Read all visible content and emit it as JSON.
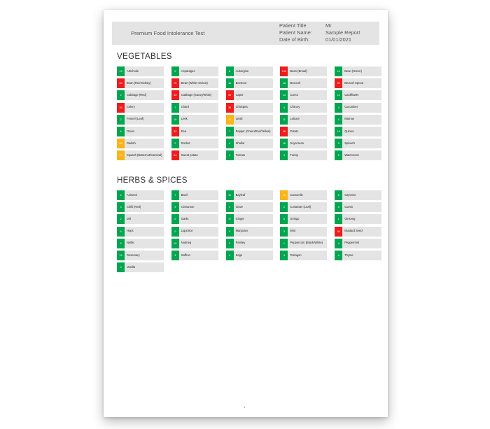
{
  "header": {
    "test_title": "Premium Food Intolerance Test",
    "patient_rows": [
      {
        "label": "Patient Title",
        "value": "Mr"
      },
      {
        "label": "Patient Name:",
        "value": "Sample Report"
      },
      {
        "label": "Date of Birth:",
        "value": "01/01/2021"
      }
    ]
  },
  "colors": {
    "normal": "#00a550",
    "borderline": "#fbb416",
    "elevated": "#ee1c1c"
  },
  "sections": [
    {
      "title": "VEGETABLES",
      "items": [
        {
          "score": "13",
          "name": "Artichoke",
          "level": "green"
        },
        {
          "score": "0",
          "name": "Asparagus",
          "level": "green"
        },
        {
          "score": "8",
          "name": "Aubergine",
          "level": "green"
        },
        {
          "score": "106",
          "name": "Bean (Broad)",
          "level": "red"
        },
        {
          "score": "19",
          "name": "Bean (Green)",
          "level": "green"
        },
        {
          "score": "40",
          "name": "Bean (Red Kidney)",
          "level": "red"
        },
        {
          "score": "70",
          "name": "Bean (White Haricot)",
          "level": "red"
        },
        {
          "score": "16",
          "name": "Beetroot",
          "level": "green"
        },
        {
          "score": "18",
          "name": "Broccoli",
          "level": "green"
        },
        {
          "score": "39",
          "name": "Brussel Sprout",
          "level": "red"
        },
        {
          "score": "2",
          "name": "Cabbage (Red)",
          "level": "green"
        },
        {
          "score": "33",
          "name": "Cabbage (Savoy/White)",
          "level": "red"
        },
        {
          "score": "30",
          "name": "Caper",
          "level": "red"
        },
        {
          "score": "13",
          "name": "Carrot",
          "level": "green"
        },
        {
          "score": "14",
          "name": "Cauliflower",
          "level": "green"
        },
        {
          "score": "33",
          "name": "Celery",
          "level": "red"
        },
        {
          "score": "7",
          "name": "Chard",
          "level": "green"
        },
        {
          "score": "33",
          "name": "Chickpea",
          "level": "red"
        },
        {
          "score": "4",
          "name": "Chicory",
          "level": "green"
        },
        {
          "score": "4",
          "name": "Cucumber",
          "level": "green"
        },
        {
          "score": "2",
          "name": "Fennel (Leaf)",
          "level": "green"
        },
        {
          "score": "16",
          "name": "Leek",
          "level": "green"
        },
        {
          "score": "17",
          "name": "Lentil",
          "level": "amber"
        },
        {
          "score": "11",
          "name": "Lettuce",
          "level": "green"
        },
        {
          "score": "4",
          "name": "Marrow",
          "level": "green"
        },
        {
          "score": "6",
          "name": "Onion",
          "level": "green"
        },
        {
          "score": "32",
          "name": "Pea",
          "level": "red"
        },
        {
          "score": "7",
          "name": "Pepper (Green/Red/Yellow)",
          "level": "green"
        },
        {
          "score": "38",
          "name": "Potato",
          "level": "red"
        },
        {
          "score": "19",
          "name": "Quinoa",
          "level": "green"
        },
        {
          "score": "10",
          "name": "Radish",
          "level": "amber"
        },
        {
          "score": "2",
          "name": "Rocket",
          "level": "green"
        },
        {
          "score": "4",
          "name": "Shallot",
          "level": "green"
        },
        {
          "score": "16",
          "name": "Soya bean",
          "level": "green"
        },
        {
          "score": "3",
          "name": "Spinach",
          "level": "green"
        },
        {
          "score": "15",
          "name": "Squash (Butternut/Carnival)",
          "level": "amber"
        },
        {
          "score": "24",
          "name": "Sweet potato",
          "level": "red"
        },
        {
          "score": "1",
          "name": "Tomato",
          "level": "green"
        },
        {
          "score": "3",
          "name": "Turnip",
          "level": "green"
        },
        {
          "score": "5",
          "name": "Watercress",
          "level": "green"
        }
      ]
    },
    {
      "title": "HERBS & SPICES",
      "items": [
        {
          "score": "4",
          "name": "Aniseed",
          "level": "green"
        },
        {
          "score": "7",
          "name": "Basil",
          "level": "green"
        },
        {
          "score": "19",
          "name": "Bayleaf",
          "level": "green"
        },
        {
          "score": "26",
          "name": "Camomile",
          "level": "amber"
        },
        {
          "score": "8",
          "name": "Cayenne",
          "level": "green"
        },
        {
          "score": "3",
          "name": "Chilli (Red)",
          "level": "green"
        },
        {
          "score": "9",
          "name": "Cinnamon",
          "level": "green"
        },
        {
          "score": "0",
          "name": "Clove",
          "level": "green"
        },
        {
          "score": "2",
          "name": "Coriander (Leaf)",
          "level": "green"
        },
        {
          "score": "5",
          "name": "Cumin",
          "level": "green"
        },
        {
          "score": "2",
          "name": "Dill",
          "level": "green"
        },
        {
          "score": "0",
          "name": "Garlic",
          "level": "green"
        },
        {
          "score": "17",
          "name": "Ginger",
          "level": "green"
        },
        {
          "score": "6",
          "name": "Ginkgo",
          "level": "green"
        },
        {
          "score": "1",
          "name": "Ginseng",
          "level": "green"
        },
        {
          "score": "6",
          "name": "Hops",
          "level": "green"
        },
        {
          "score": "0",
          "name": "Liquorice",
          "level": "green"
        },
        {
          "score": "0",
          "name": "Marjoram",
          "level": "green"
        },
        {
          "score": "3",
          "name": "Mint",
          "level": "green"
        },
        {
          "score": "54",
          "name": "Mustard Seed",
          "level": "red"
        },
        {
          "score": "5",
          "name": "Nettle",
          "level": "green"
        },
        {
          "score": "10",
          "name": "Nutmeg",
          "level": "green"
        },
        {
          "score": "2",
          "name": "Parsley",
          "level": "green"
        },
        {
          "score": "1",
          "name": "Peppercorn (Black/White)",
          "level": "green"
        },
        {
          "score": "4",
          "name": "Peppermint",
          "level": "green"
        },
        {
          "score": "14",
          "name": "Rosemary",
          "level": "green"
        },
        {
          "score": "3",
          "name": "Saffron",
          "level": "green"
        },
        {
          "score": "4",
          "name": "Sage",
          "level": "green"
        },
        {
          "score": "4",
          "name": "Tarragon",
          "level": "green"
        },
        {
          "score": "4",
          "name": "Thyme",
          "level": "green"
        },
        {
          "score": "0",
          "name": "Vanilla",
          "level": "green"
        }
      ]
    }
  ],
  "page_number": "1"
}
